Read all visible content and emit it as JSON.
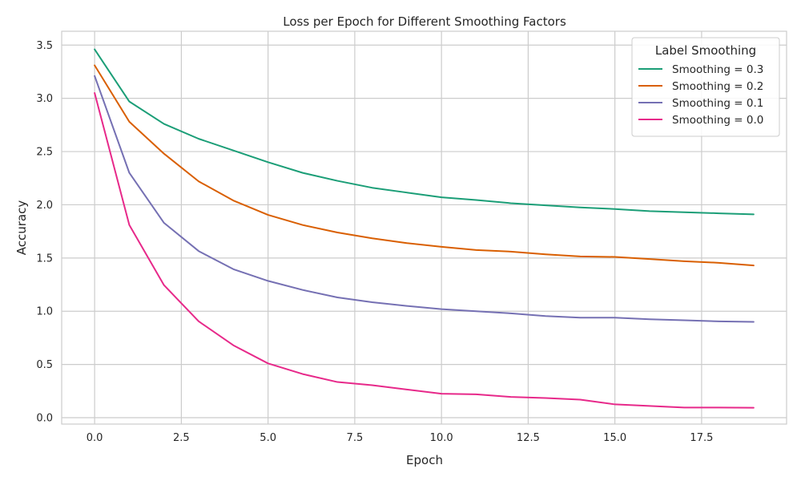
{
  "chart_data": {
    "type": "line",
    "title": "Loss per Epoch for Different Smoothing Factors",
    "xlabel": "Epoch",
    "ylabel": "Accuracy",
    "xlim": [
      -0.95,
      19.95
    ],
    "ylim": [
      -0.06,
      3.63
    ],
    "xticks": [
      0,
      2.5,
      5,
      7.5,
      10,
      12.5,
      15,
      17.5
    ],
    "xtick_labels": [
      "0.0",
      "2.5",
      "5.0",
      "7.5",
      "10.0",
      "12.5",
      "15.0",
      "17.5"
    ],
    "yticks": [
      0,
      0.5,
      1,
      1.5,
      2,
      2.5,
      3,
      3.5
    ],
    "ytick_labels": [
      "0.0",
      "0.5",
      "1.0",
      "1.5",
      "2.0",
      "2.5",
      "3.0",
      "3.5"
    ],
    "grid": true,
    "legend": {
      "title": "Label Smoothing",
      "position": "top-right"
    },
    "x": [
      0,
      1,
      2,
      3,
      4,
      5,
      6,
      7,
      8,
      9,
      10,
      11,
      12,
      13,
      14,
      15,
      16,
      17,
      18,
      19
    ],
    "series": [
      {
        "name": "Smoothing = 0.3",
        "color": "#1b9e77",
        "values": [
          3.46,
          2.97,
          2.76,
          2.62,
          2.51,
          2.4,
          2.3,
          2.225,
          2.16,
          2.115,
          2.07,
          2.045,
          2.015,
          1.995,
          1.975,
          1.96,
          1.94,
          1.93,
          1.92,
          1.91
        ]
      },
      {
        "name": "Smoothing = 0.2",
        "color": "#d95f02",
        "values": [
          3.31,
          2.78,
          2.48,
          2.22,
          2.04,
          1.905,
          1.81,
          1.74,
          1.685,
          1.64,
          1.605,
          1.575,
          1.56,
          1.535,
          1.515,
          1.51,
          1.49,
          1.47,
          1.455,
          1.43
        ]
      },
      {
        "name": "Smoothing = 0.1",
        "color": "#7570b3",
        "values": [
          3.21,
          2.3,
          1.83,
          1.565,
          1.395,
          1.285,
          1.2,
          1.13,
          1.085,
          1.05,
          1.02,
          1.0,
          0.98,
          0.955,
          0.94,
          0.94,
          0.925,
          0.915,
          0.905,
          0.9
        ]
      },
      {
        "name": "Smoothing = 0.0",
        "color": "#e7298a",
        "values": [
          3.05,
          1.81,
          1.245,
          0.905,
          0.68,
          0.51,
          0.41,
          0.335,
          0.305,
          0.265,
          0.225,
          0.22,
          0.195,
          0.185,
          0.17,
          0.125,
          0.11,
          0.095,
          0.095,
          0.093
        ]
      }
    ]
  }
}
